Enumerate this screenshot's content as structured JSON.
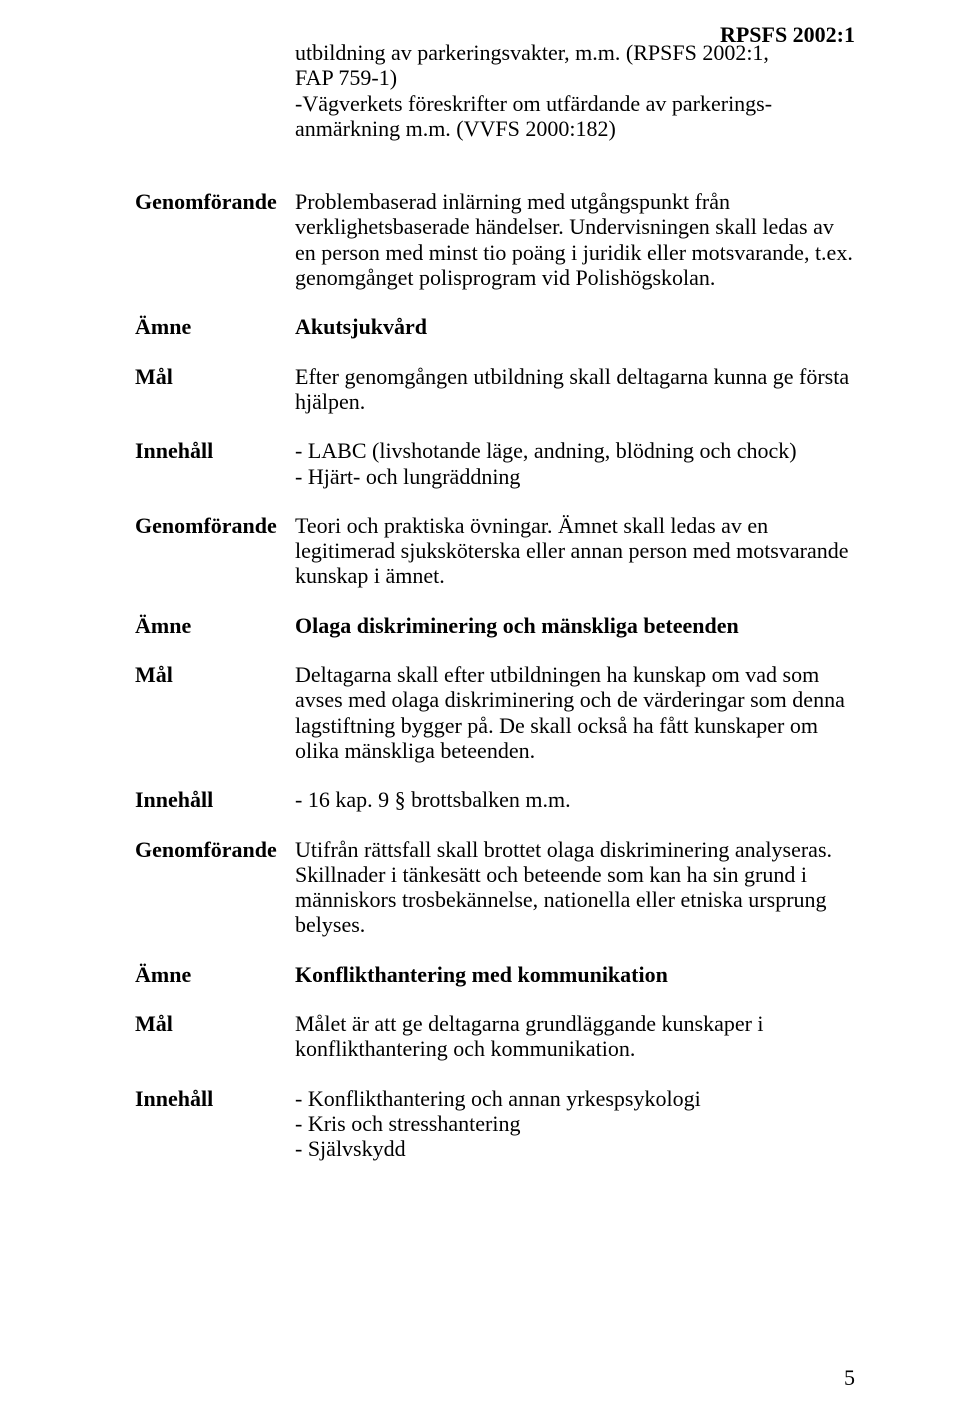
{
  "header": {
    "regulation": "RPSFS 2002:1"
  },
  "intro": {
    "line1": "utbildning av parkeringsvakter, m.m. (RPSFS 2002:1,",
    "line2": "FAP 759-1)",
    "line3": "-Vägverkets föreskrifter om utfärdande av parkerings-",
    "line4": "anmärkning m.m. (VVFS 2000:182)"
  },
  "labels": {
    "genomforande": "Genomförande",
    "amne": "Ämne",
    "mal": "Mål",
    "innehall": "Innehåll"
  },
  "sections": {
    "genom1": "Problembaserad inlärning med utgångspunkt från verklighetsbaserade händelser. Undervisningen skall ledas av en person med minst tio poäng i juridik eller motsvarande, t.ex. genomgånget polisprogram vid Polishögskolan.",
    "amne1": "Akutsjukvård",
    "mal1": "Efter genomgången utbildning skall deltagarna kunna ge första hjälpen.",
    "innehall1_a": "- LABC (livshotande läge, andning, blödning och chock)",
    "innehall1_b": "- Hjärt- och lungräddning",
    "genom2": "Teori och praktiska övningar. Ämnet skall ledas av en legitimerad sjuksköterska eller annan person med motsvarande kunskap i ämnet.",
    "amne2": "Olaga diskriminering och mänskliga beteenden",
    "mal2": "Deltagarna skall efter utbildningen ha kunskap om vad som avses med olaga diskriminering och de värderingar som denna lagstiftning bygger på. De skall också ha fått kunskaper om olika mänskliga beteenden.",
    "innehall2": "- 16 kap. 9 § brottsbalken m.m.",
    "genom3": "Utifrån rättsfall skall brottet olaga diskriminering analyseras. Skillnader i tänkesätt och beteende som kan ha sin grund i  människors trosbekännelse, nationella eller etniska ursprung belyses.",
    "amne3": "Konflikthantering med kommunikation",
    "mal3": "Målet är att ge deltagarna grundläggande kunskaper i konflikthantering och kommunikation.",
    "innehall3_a": "- Konflikthantering och annan yrkespsykologi",
    "innehall3_b": "- Kris och stresshantering",
    "innehall3_c": "- Självskydd"
  },
  "page_number": "5"
}
